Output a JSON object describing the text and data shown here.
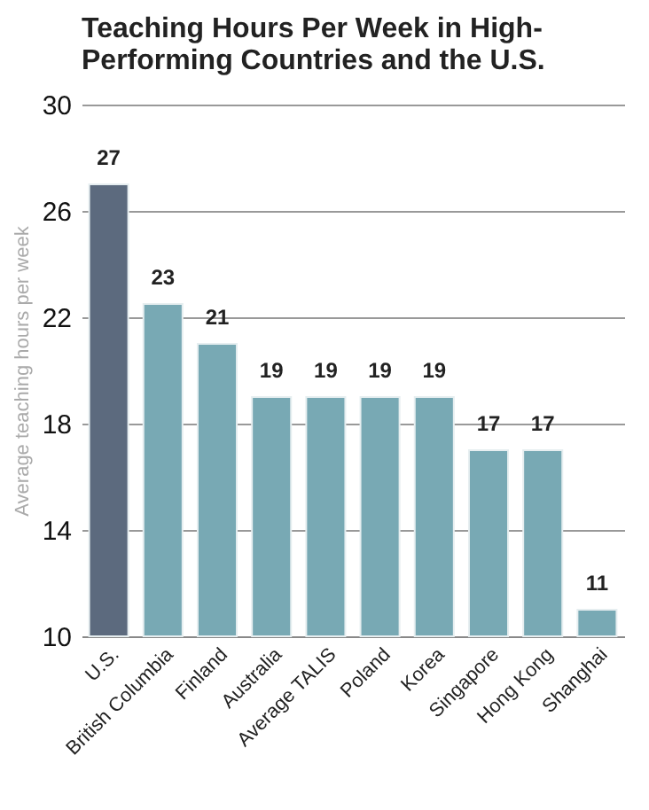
{
  "chart_data": {
    "type": "bar",
    "title": [
      "Teaching Hours Per Week in High-",
      "Performing Countries and the U.S."
    ],
    "ylabel": "Average teaching hours per week",
    "categories": [
      "U.S.",
      "British Columbia",
      "Finland",
      "Australia",
      "Average TALIS",
      "Poland",
      "Korea",
      "Singapore",
      "Hong Kong",
      "Shanghai"
    ],
    "values": [
      27,
      22.5,
      21,
      19,
      19,
      19,
      19,
      17,
      17,
      11
    ],
    "value_labels": [
      "27",
      "23",
      "21",
      "19",
      "19",
      "19",
      "19",
      "17",
      "17",
      "11"
    ],
    "colors": [
      "#5c6a7e",
      "#78a9b4",
      "#78a9b4",
      "#78a9b4",
      "#78a9b4",
      "#78a9b4",
      "#78a9b4",
      "#78a9b4",
      "#78a9b4",
      "#78a9b4"
    ],
    "ylim": [
      10,
      30
    ],
    "yticks": [
      10,
      14,
      18,
      22,
      26,
      30
    ],
    "grid": "y"
  }
}
